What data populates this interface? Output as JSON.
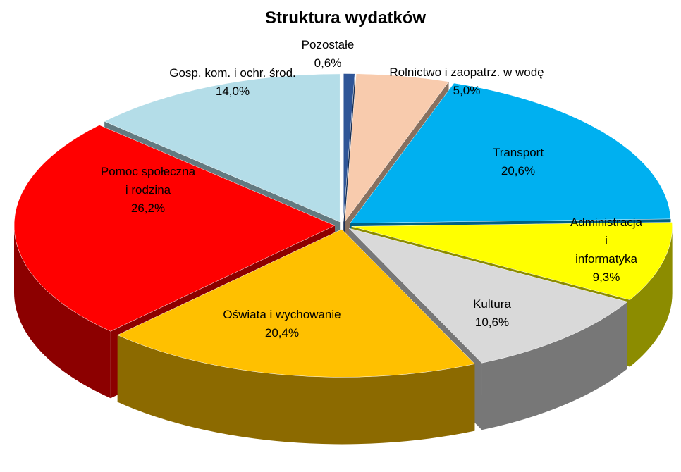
{
  "chart_data": {
    "type": "pie",
    "title": "Struktura wydatków",
    "categories": [
      "Pozostałe",
      "Rolnictwo i zaopatrz. w wodę",
      "Transport",
      "Administracja i\ninformatyka",
      "Kultura",
      "Oświata i wychowanie",
      "Pomoc społeczna\ni rodzina",
      "Gosp. kom. i ochr. środ."
    ],
    "values": [
      0.6,
      5.0,
      20.6,
      9.3,
      10.6,
      20.4,
      26.2,
      14.0
    ],
    "value_labels": [
      "0,6%",
      "5,0%",
      "20,6%",
      "9,3%",
      "10,6%",
      "20,4%",
      "26,2%",
      "14,0%"
    ],
    "colors": [
      "#2f5597",
      "#f8cbad",
      "#00b0f0",
      "#ffff00",
      "#d9d9d9",
      "#ffc000",
      "#ff0000",
      "#b4dde8"
    ]
  }
}
